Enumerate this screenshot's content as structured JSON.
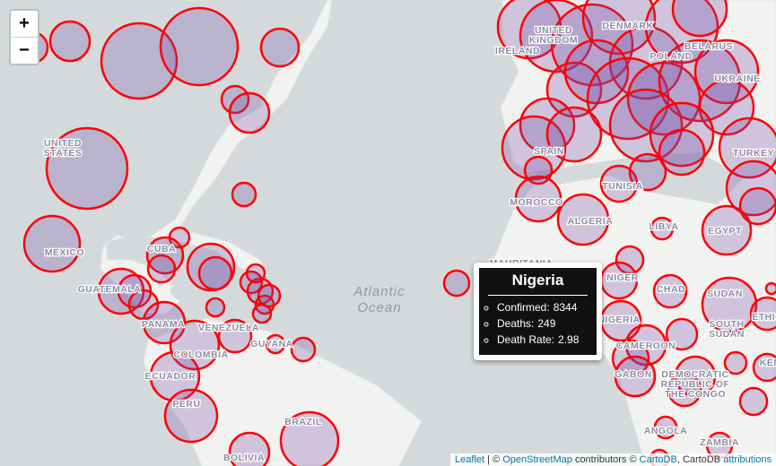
{
  "zoom": {
    "zoom_in": "+",
    "zoom_out": "−"
  },
  "map_labels": [
    "UNITED",
    "STATES",
    "MEXICO",
    "CUBA",
    "GUATEMALA",
    "PANAMA",
    "VENEZUELA",
    "COLOMBIA",
    "ECUADOR",
    "PERU",
    "BRAZIL",
    "BOLIVIA",
    "GUYANA",
    "Atlantic",
    "Ocean",
    "UNITED",
    "KINGDOM",
    "IRELAND",
    "DENMARK",
    "BELARUS",
    "POLAND",
    "UKRAINE",
    "SPAIN",
    "TUNISIA",
    "MOROCCO",
    "ALGERIA",
    "LIBYA",
    "EGYPT",
    "TURKEY",
    "MAURITANIA",
    "NIGER",
    "CHAD",
    "SUDAN",
    "SOUTH",
    "SUDAN",
    "NIGERIA",
    "CAMEROON",
    "GABON",
    "DEMOCRATIC",
    "REPUBLIC OF",
    "THE CONGO",
    "ANGOLA",
    "ZAMBIA",
    "ETHIOPIA",
    "KENYA"
  ],
  "tooltip": {
    "title": "Nigeria",
    "items": [
      {
        "label": "Confirmed:",
        "value": 8344
      },
      {
        "label": "Deaths:",
        "value": 249
      },
      {
        "label": "Death Rate:",
        "value": 2.98
      }
    ]
  },
  "attribution": {
    "leaflet": "Leaflet",
    "separator": "|",
    "copyright": "©",
    "osm": "OpenStreetMap",
    "contributors": "contributors ©",
    "cartodb": "CartoDB",
    "cartodb_text": ", CartoDB",
    "attributions": "attributions"
  }
}
